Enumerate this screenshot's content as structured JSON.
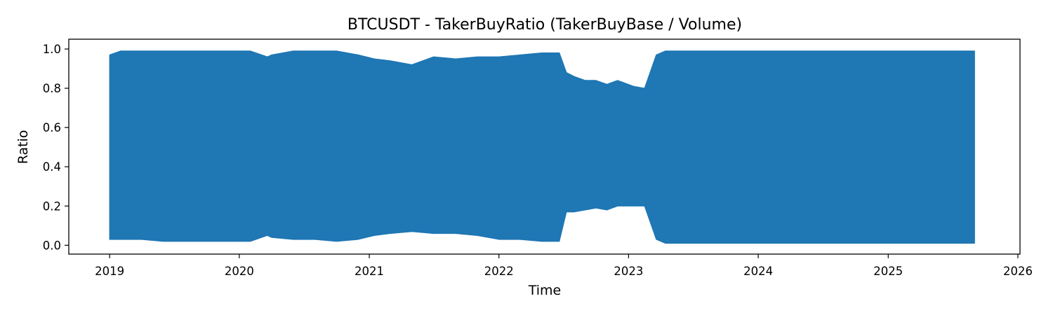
{
  "chart_data": {
    "type": "area",
    "title": "BTCUSDT - TakerBuyRatio (TakerBuyBase / Volume)",
    "xlabel": "Time",
    "ylabel": "Ratio",
    "xlim": [
      "2018-09-08",
      "2026-01-07"
    ],
    "ylim": [
      -0.045,
      1.05
    ],
    "xticks": [
      "2019",
      "2020",
      "2021",
      "2022",
      "2023",
      "2024",
      "2025",
      "2026"
    ],
    "yticks": [
      0.0,
      0.2,
      0.4,
      0.6,
      0.8,
      1.0
    ],
    "ytick_labels": [
      "0.0",
      "0.2",
      "0.4",
      "0.6",
      "0.8",
      "1.0"
    ],
    "grid": false,
    "series": [
      {
        "color": "#1f77b4",
        "x": [
          "2019-01-01",
          "2019-02-01",
          "2019-04-01",
          "2019-06-01",
          "2019-08-01",
          "2019-10-01",
          "2019-12-01",
          "2020-02-01",
          "2020-03-20",
          "2020-04-01",
          "2020-06-01",
          "2020-08-01",
          "2020-10-01",
          "2020-12-01",
          "2021-01-15",
          "2021-03-01",
          "2021-05-01",
          "2021-07-01",
          "2021-09-01",
          "2021-11-01",
          "2022-01-01",
          "2022-03-01",
          "2022-05-01",
          "2022-06-20",
          "2022-07-10",
          "2022-08-01",
          "2022-09-01",
          "2022-10-01",
          "2022-11-01",
          "2022-12-01",
          "2023-01-15",
          "2023-02-15",
          "2023-03-20",
          "2023-04-15",
          "2023-06-01",
          "2023-09-01",
          "2023-12-01",
          "2024-03-01",
          "2024-06-01",
          "2024-09-01",
          "2024-12-01",
          "2025-03-01",
          "2025-06-01",
          "2025-09-01"
        ],
        "upper": [
          0.97,
          0.99,
          0.99,
          0.99,
          0.99,
          0.99,
          0.99,
          0.99,
          0.96,
          0.97,
          0.99,
          0.99,
          0.99,
          0.97,
          0.95,
          0.94,
          0.92,
          0.96,
          0.95,
          0.96,
          0.96,
          0.97,
          0.98,
          0.98,
          0.88,
          0.86,
          0.84,
          0.84,
          0.82,
          0.84,
          0.81,
          0.8,
          0.97,
          0.99,
          0.99,
          0.99,
          0.99,
          0.99,
          0.99,
          0.99,
          0.99,
          0.99,
          0.99,
          0.99
        ],
        "lower": [
          0.03,
          0.03,
          0.03,
          0.02,
          0.02,
          0.02,
          0.02,
          0.02,
          0.05,
          0.04,
          0.03,
          0.03,
          0.02,
          0.03,
          0.05,
          0.06,
          0.07,
          0.06,
          0.06,
          0.05,
          0.03,
          0.03,
          0.02,
          0.02,
          0.17,
          0.17,
          0.18,
          0.19,
          0.18,
          0.2,
          0.2,
          0.2,
          0.03,
          0.01,
          0.01,
          0.01,
          0.01,
          0.01,
          0.01,
          0.01,
          0.01,
          0.01,
          0.01,
          0.01
        ]
      }
    ]
  }
}
